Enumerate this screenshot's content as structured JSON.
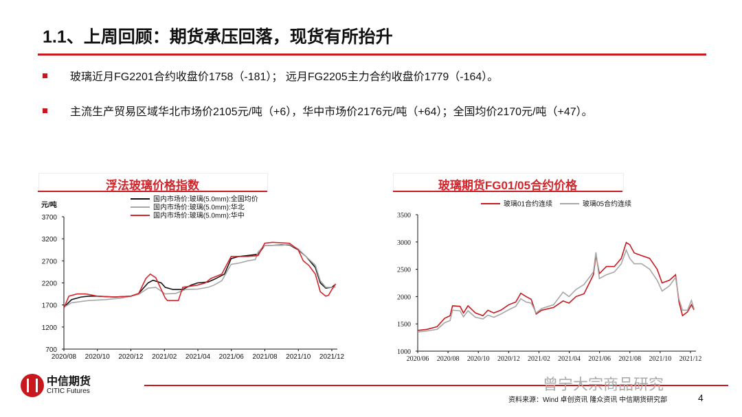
{
  "header": {
    "title": "1.1、上周回顾：期货承压回落，现货有所抬升"
  },
  "bullets": [
    "玻璃近月FG2201合约收盘价1758（-181）； 远月FG2205主力合约收盘价1779（-164）。",
    "主流生产贸易区域华北市场价2105元/吨（+6），华中市场价2176元/吨（+64）；全国均价2170元/吨（+47）。"
  ],
  "colors": {
    "accent": "#c8171d",
    "black": "#111111",
    "gray": "#a6a6a6",
    "red": "#d4242a"
  },
  "chart_data": [
    {
      "type": "line",
      "title": "浮法玻璃价格指数",
      "ylabel": "元/吨",
      "ylim": [
        700,
        3700
      ],
      "yticks": [
        "700",
        "1200",
        "1700",
        "2200",
        "2700",
        "3200",
        "3700"
      ],
      "xticks": [
        "2020/08",
        "2020/10",
        "2020/12",
        "2021/02",
        "2021/04",
        "2021/06",
        "2021/08",
        "2021/10",
        "2021/12"
      ],
      "xstart": "2020-08-01",
      "xend": "2021-12-01",
      "legend": "top-right",
      "series": [
        {
          "name": "国内市场价:玻璃(5.0mm):全国均价",
          "color": "#111111",
          "points": [
            [
              "2020-08-01",
              1650
            ],
            [
              "2020-08-15",
              1820
            ],
            [
              "2020-09-01",
              1880
            ],
            [
              "2020-09-15",
              1900
            ],
            [
              "2020-10-01",
              1900
            ],
            [
              "2020-11-01",
              1880
            ],
            [
              "2020-12-01",
              1900
            ],
            [
              "2020-12-15",
              1960
            ],
            [
              "2021-01-01",
              2200
            ],
            [
              "2021-01-10",
              2260
            ],
            [
              "2021-01-25",
              2200
            ],
            [
              "2021-02-01",
              2100
            ],
            [
              "2021-02-15",
              2050
            ],
            [
              "2021-03-05",
              2050
            ],
            [
              "2021-03-20",
              2150
            ],
            [
              "2021-04-01",
              2200
            ],
            [
              "2021-04-20",
              2220
            ],
            [
              "2021-05-01",
              2280
            ],
            [
              "2021-05-20",
              2400
            ],
            [
              "2021-06-01",
              2750
            ],
            [
              "2021-06-15",
              2800
            ],
            [
              "2021-07-01",
              2820
            ],
            [
              "2021-07-20",
              2850
            ],
            [
              "2021-08-01",
              3050
            ],
            [
              "2021-08-15",
              3050
            ],
            [
              "2021-09-01",
              3060
            ],
            [
              "2021-09-15",
              3060
            ],
            [
              "2021-10-01",
              2950
            ],
            [
              "2021-10-15",
              2800
            ],
            [
              "2021-11-01",
              2550
            ],
            [
              "2021-11-10",
              2200
            ],
            [
              "2021-11-20",
              2080
            ],
            [
              "2021-12-01",
              2100
            ],
            [
              "2021-12-08",
              2170
            ]
          ]
        },
        {
          "name": "国内市场价:玻璃(5.0mm):华北",
          "color": "#a6a6a6",
          "points": [
            [
              "2020-08-01",
              1650
            ],
            [
              "2020-08-15",
              1750
            ],
            [
              "2020-09-15",
              1800
            ],
            [
              "2020-10-15",
              1820
            ],
            [
              "2020-11-15",
              1860
            ],
            [
              "2020-12-15",
              1940
            ],
            [
              "2021-01-01",
              2080
            ],
            [
              "2021-01-15",
              2100
            ],
            [
              "2021-02-01",
              1950
            ],
            [
              "2021-02-20",
              1960
            ],
            [
              "2021-03-10",
              2050
            ],
            [
              "2021-04-01",
              2060
            ],
            [
              "2021-04-20",
              2100
            ],
            [
              "2021-05-01",
              2150
            ],
            [
              "2021-05-15",
              2250
            ],
            [
              "2021-06-01",
              2620
            ],
            [
              "2021-06-15",
              2650
            ],
            [
              "2021-07-01",
              2700
            ],
            [
              "2021-07-15",
              2730
            ],
            [
              "2021-07-20",
              2900
            ],
            [
              "2021-08-01",
              3050
            ],
            [
              "2021-09-01",
              3050
            ],
            [
              "2021-09-15",
              3070
            ],
            [
              "2021-10-01",
              2970
            ],
            [
              "2021-10-15",
              2800
            ],
            [
              "2021-11-01",
              2600
            ],
            [
              "2021-11-10",
              2250
            ],
            [
              "2021-11-20",
              2100
            ],
            [
              "2021-12-01",
              2100
            ],
            [
              "2021-12-08",
              2105
            ]
          ]
        },
        {
          "name": "国内市场价:玻璃(5.0mm):华中",
          "color": "#d4242a",
          "points": [
            [
              "2020-08-01",
              1630
            ],
            [
              "2020-08-10",
              1900
            ],
            [
              "2020-08-25",
              1950
            ],
            [
              "2020-09-10",
              1950
            ],
            [
              "2020-10-01",
              1900
            ],
            [
              "2020-11-01",
              1880
            ],
            [
              "2020-12-01",
              1900
            ],
            [
              "2020-12-15",
              1960
            ],
            [
              "2020-12-28",
              2300
            ],
            [
              "2021-01-05",
              2400
            ],
            [
              "2021-01-15",
              2320
            ],
            [
              "2021-02-01",
              1860
            ],
            [
              "2021-02-05",
              1800
            ],
            [
              "2021-02-25",
              1800
            ],
            [
              "2021-03-05",
              2100
            ],
            [
              "2021-04-01",
              2150
            ],
            [
              "2021-04-15",
              2200
            ],
            [
              "2021-04-25",
              2300
            ],
            [
              "2021-05-15",
              2400
            ],
            [
              "2021-06-01",
              2800
            ],
            [
              "2021-07-01",
              2800
            ],
            [
              "2021-07-20",
              2820
            ],
            [
              "2021-08-01",
              3100
            ],
            [
              "2021-08-15",
              3120
            ],
            [
              "2021-09-15",
              3100
            ],
            [
              "2021-10-01",
              2950
            ],
            [
              "2021-10-10",
              2700
            ],
            [
              "2021-10-20",
              2600
            ],
            [
              "2021-11-01",
              2400
            ],
            [
              "2021-11-10",
              2000
            ],
            [
              "2021-11-20",
              1900
            ],
            [
              "2021-11-25",
              1920
            ],
            [
              "2021-12-01",
              2050
            ],
            [
              "2021-12-08",
              2176
            ]
          ]
        }
      ]
    },
    {
      "type": "line",
      "title": "玻璃期货FG01/05合约价格",
      "ylim": [
        1000,
        3500
      ],
      "yticks": [
        "1000",
        "1500",
        "2000",
        "2500",
        "3000",
        "3500"
      ],
      "xticks": [
        "2020/06",
        "2020/08",
        "2020/10",
        "2020/12",
        "2021/02",
        "2021/04",
        "2021/06",
        "2021/08",
        "2021/10",
        "2021/12"
      ],
      "xstart": "2020-06-01",
      "xend": "2021-12-01",
      "legend": "top",
      "series": [
        {
          "name": "玻璃01合约连续",
          "color": "#c8171d",
          "points": [
            [
              "2020-06-01",
              1380
            ],
            [
              "2020-06-20",
              1400
            ],
            [
              "2020-07-10",
              1450
            ],
            [
              "2020-07-25",
              1600
            ],
            [
              "2020-08-05",
              1650
            ],
            [
              "2020-08-10",
              1830
            ],
            [
              "2020-08-25",
              1820
            ],
            [
              "2020-09-01",
              1700
            ],
            [
              "2020-09-10",
              1830
            ],
            [
              "2020-09-25",
              1700
            ],
            [
              "2020-10-10",
              1650
            ],
            [
              "2020-10-20",
              1750
            ],
            [
              "2020-11-01",
              1700
            ],
            [
              "2020-11-15",
              1750
            ],
            [
              "2020-12-01",
              1850
            ],
            [
              "2020-12-15",
              1900
            ],
            [
              "2020-12-25",
              2060
            ],
            [
              "2021-01-05",
              2000
            ],
            [
              "2021-01-15",
              1950
            ],
            [
              "2021-01-25",
              1680
            ],
            [
              "2021-02-05",
              1750
            ],
            [
              "2021-03-01",
              1800
            ],
            [
              "2021-03-20",
              1920
            ],
            [
              "2021-04-01",
              1880
            ],
            [
              "2021-04-15",
              2000
            ],
            [
              "2021-05-01",
              2050
            ],
            [
              "2021-05-20",
              2400
            ],
            [
              "2021-05-25",
              2750
            ],
            [
              "2021-06-01",
              2420
            ],
            [
              "2021-06-15",
              2550
            ],
            [
              "2021-07-01",
              2550
            ],
            [
              "2021-07-15",
              2700
            ],
            [
              "2021-07-25",
              2990
            ],
            [
              "2021-08-01",
              2950
            ],
            [
              "2021-08-10",
              2800
            ],
            [
              "2021-08-25",
              2750
            ],
            [
              "2021-09-10",
              2700
            ],
            [
              "2021-09-25",
              2500
            ],
            [
              "2021-10-05",
              2250
            ],
            [
              "2021-10-20",
              2300
            ],
            [
              "2021-11-01",
              2400
            ],
            [
              "2021-11-08",
              1900
            ],
            [
              "2021-11-15",
              1650
            ],
            [
              "2021-11-25",
              1720
            ],
            [
              "2021-12-03",
              1850
            ],
            [
              "2021-12-08",
              1758
            ]
          ]
        },
        {
          "name": "玻璃05合约连续",
          "color": "#a6a6a6",
          "points": [
            [
              "2020-06-01",
              1350
            ],
            [
              "2020-06-20",
              1370
            ],
            [
              "2020-07-10",
              1400
            ],
            [
              "2020-07-25",
              1520
            ],
            [
              "2020-08-05",
              1560
            ],
            [
              "2020-08-10",
              1750
            ],
            [
              "2020-08-25",
              1740
            ],
            [
              "2020-09-01",
              1630
            ],
            [
              "2020-09-10",
              1740
            ],
            [
              "2020-09-25",
              1620
            ],
            [
              "2020-10-10",
              1590
            ],
            [
              "2020-10-20",
              1660
            ],
            [
              "2020-11-01",
              1620
            ],
            [
              "2020-11-15",
              1680
            ],
            [
              "2020-12-01",
              1760
            ],
            [
              "2020-12-15",
              1820
            ],
            [
              "2020-12-25",
              1960
            ],
            [
              "2021-01-05",
              1900
            ],
            [
              "2021-01-15",
              1880
            ],
            [
              "2021-01-25",
              1700
            ],
            [
              "2021-02-05",
              1780
            ],
            [
              "2021-03-01",
              1850
            ],
            [
              "2021-03-20",
              2080
            ],
            [
              "2021-04-01",
              2000
            ],
            [
              "2021-04-15",
              2130
            ],
            [
              "2021-05-01",
              2220
            ],
            [
              "2021-05-20",
              2450
            ],
            [
              "2021-05-25",
              2810
            ],
            [
              "2021-06-01",
              2330
            ],
            [
              "2021-06-15",
              2400
            ],
            [
              "2021-07-01",
              2450
            ],
            [
              "2021-07-15",
              2600
            ],
            [
              "2021-07-25",
              2850
            ],
            [
              "2021-08-01",
              2700
            ],
            [
              "2021-08-10",
              2600
            ],
            [
              "2021-08-25",
              2600
            ],
            [
              "2021-09-10",
              2500
            ],
            [
              "2021-09-25",
              2300
            ],
            [
              "2021-10-05",
              2100
            ],
            [
              "2021-10-20",
              2200
            ],
            [
              "2021-11-01",
              2350
            ],
            [
              "2021-11-08",
              1950
            ],
            [
              "2021-11-15",
              1750
            ],
            [
              "2021-11-25",
              1750
            ],
            [
              "2021-12-03",
              1930
            ],
            [
              "2021-12-08",
              1779
            ]
          ]
        }
      ]
    }
  ],
  "footer": {
    "logo_cn": "中信期货",
    "logo_en": "CITIC Futures",
    "watermark": "曾宁大宗商品研究",
    "source": "资料来源：Wind 卓创资讯 隆众资讯 中信期货研究部",
    "page": "4"
  }
}
